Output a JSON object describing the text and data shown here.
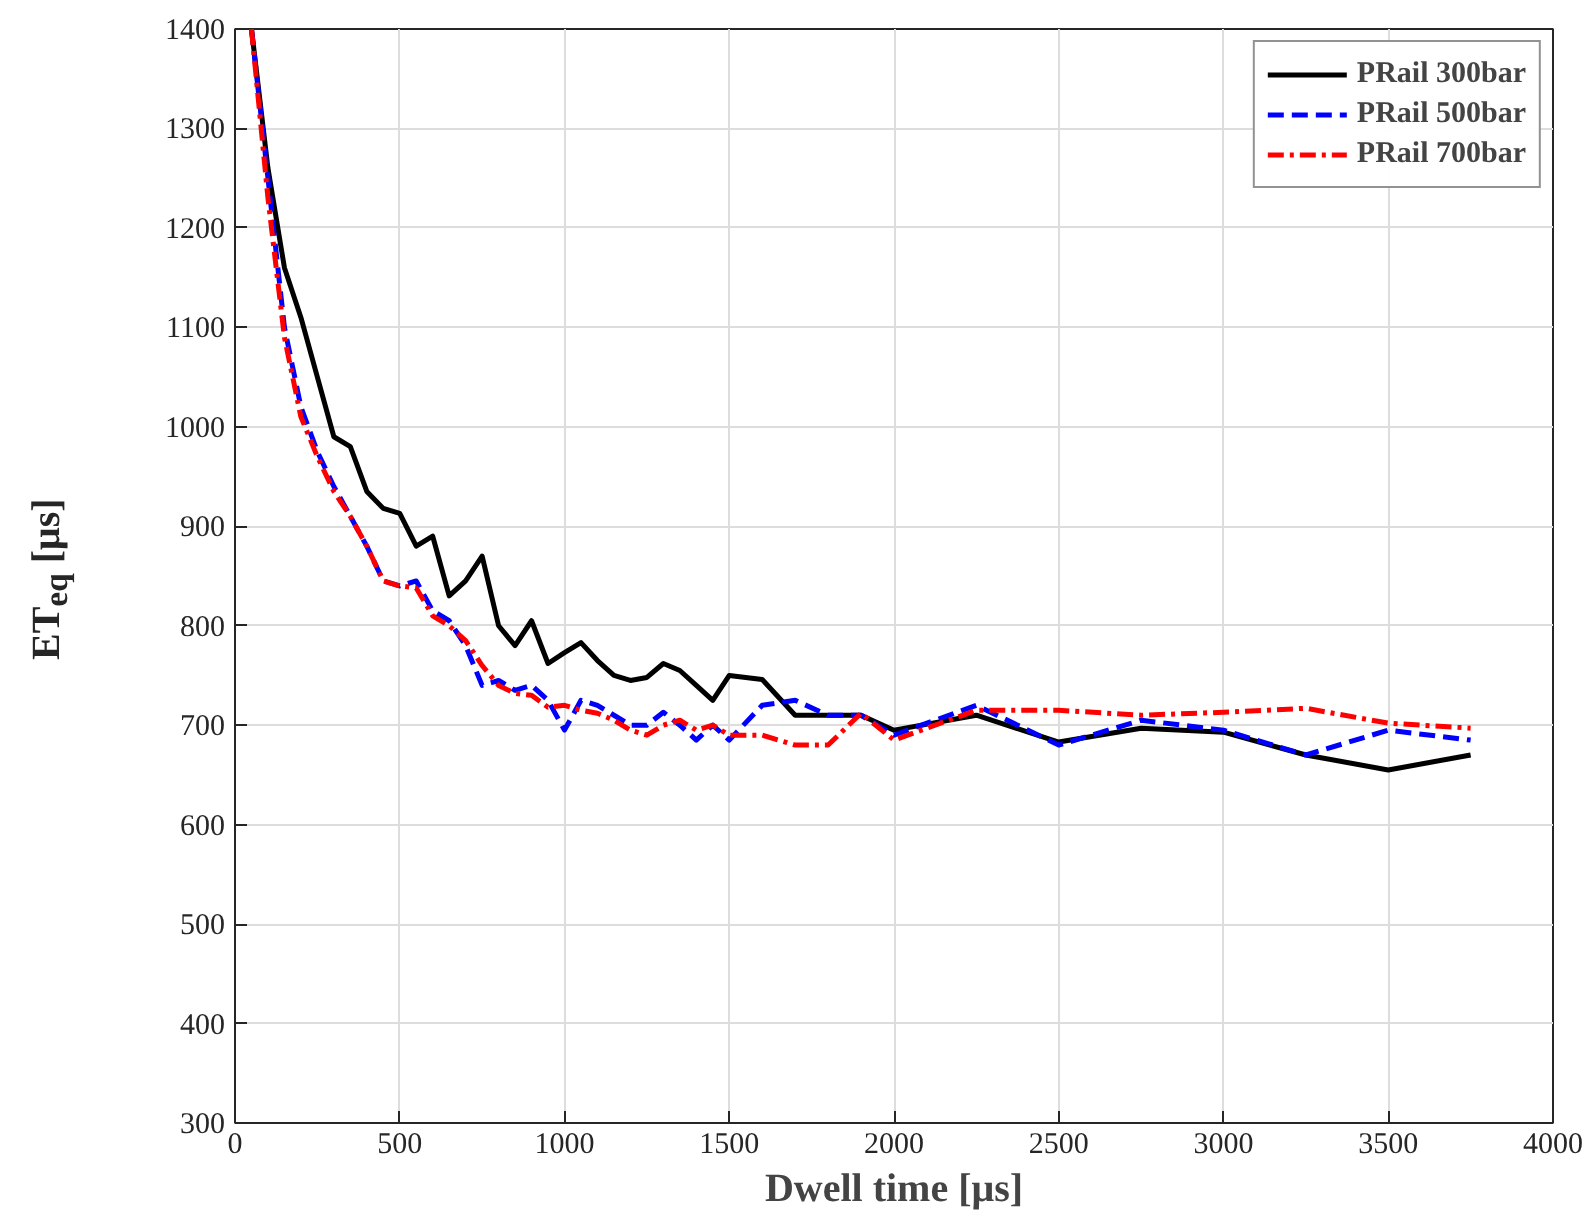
{
  "chart_data": {
    "type": "line",
    "xlabel": "Dwell time [μs]",
    "ylabel": "ET$_{eq}$ [μs]",
    "xlim": [
      0,
      4000
    ],
    "xticks": [
      0,
      500,
      1000,
      1500,
      2000,
      2500,
      3000,
      3500,
      4000
    ],
    "ylim": [
      300,
      1400
    ],
    "yticks": [
      300,
      400,
      500,
      600,
      700,
      800,
      900,
      1000,
      1100,
      1200,
      1300,
      1400
    ],
    "grid": true,
    "legend": "top right",
    "series": [
      {
        "name": "PRail 300bar",
        "color": "#000000",
        "line_style": "solid",
        "x": [
          50,
          100,
          150,
          200,
          250,
          300,
          350,
          400,
          450,
          500,
          550,
          600,
          650,
          700,
          750,
          800,
          850,
          900,
          950,
          1000,
          1050,
          1100,
          1150,
          1200,
          1250,
          1300,
          1350,
          1400,
          1450,
          1500,
          1550,
          1600,
          1700,
          1800,
          1900,
          2000,
          2250,
          2500,
          2750,
          3000,
          3250,
          3500,
          3750
        ],
        "values": [
          1400,
          1260,
          1160,
          1110,
          1050,
          990,
          980,
          935,
          918,
          913,
          880,
          890,
          830,
          845,
          870,
          800,
          780,
          805,
          762,
          773,
          783,
          765,
          750,
          745,
          748,
          762,
          755,
          740,
          725,
          750,
          748,
          746,
          710,
          710,
          710,
          695,
          710,
          683,
          697,
          693,
          670,
          655,
          670
        ]
      },
      {
        "name": "PRail 500bar",
        "color": "#0000ff",
        "line_style": "dashed",
        "x": [
          50,
          100,
          150,
          200,
          250,
          300,
          350,
          400,
          450,
          500,
          550,
          600,
          650,
          700,
          750,
          800,
          850,
          900,
          950,
          1000,
          1050,
          1100,
          1150,
          1200,
          1250,
          1300,
          1350,
          1400,
          1450,
          1500,
          1600,
          1700,
          1800,
          1900,
          2000,
          2250,
          2500,
          2750,
          3000,
          3250,
          3500,
          3750
        ],
        "values": [
          1400,
          1250,
          1100,
          1020,
          975,
          940,
          910,
          880,
          845,
          840,
          845,
          815,
          805,
          780,
          740,
          745,
          735,
          740,
          725,
          695,
          725,
          720,
          710,
          700,
          700,
          713,
          700,
          685,
          700,
          685,
          720,
          725,
          710,
          710,
          690,
          720,
          680,
          705,
          695,
          670,
          695,
          685
        ]
      },
      {
        "name": "PRail 700bar",
        "color": "#ff0000",
        "line_style": "dashdot",
        "x": [
          50,
          100,
          150,
          200,
          250,
          300,
          350,
          400,
          450,
          500,
          550,
          600,
          650,
          700,
          750,
          800,
          850,
          900,
          950,
          1000,
          1050,
          1100,
          1150,
          1200,
          1250,
          1300,
          1350,
          1400,
          1450,
          1500,
          1600,
          1700,
          1800,
          1900,
          2000,
          2250,
          2500,
          2750,
          3000,
          3250,
          3500,
          3750
        ],
        "values": [
          1400,
          1230,
          1090,
          1010,
          970,
          935,
          910,
          880,
          845,
          840,
          838,
          810,
          800,
          785,
          760,
          740,
          732,
          730,
          718,
          720,
          715,
          712,
          705,
          695,
          690,
          700,
          705,
          695,
          700,
          690,
          690,
          680,
          680,
          712,
          685,
          715,
          715,
          710,
          713,
          717,
          702,
          697
        ]
      }
    ]
  }
}
